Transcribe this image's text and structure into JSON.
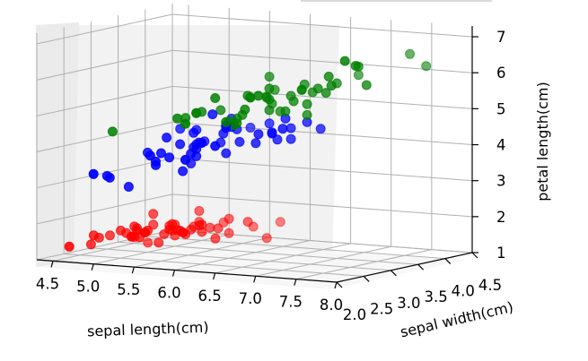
{
  "chart_data": {
    "type": "scatter",
    "projection": "3d",
    "title": "",
    "xlabel": "sepal length(cm)",
    "ylabel": "sepal width(cm)",
    "zlabel": "petal length(cm)",
    "xlim": [
      4.3,
      8.0
    ],
    "ylim": [
      2.0,
      4.5
    ],
    "zlim": [
      1.0,
      7.3
    ],
    "xticks": [
      "4.5",
      "5.0",
      "5.5",
      "6.0",
      "6.5",
      "7.0",
      "7.5",
      "8.0"
    ],
    "yticks": [
      "2.0",
      "2.5",
      "3.0",
      "3.5",
      "4.0",
      "4.5"
    ],
    "zticks": [
      "1",
      "2",
      "3",
      "4",
      "5",
      "6",
      "7"
    ],
    "grid": true,
    "colors": {
      "setosa": "#ff0000",
      "versicolor": "#0000ff",
      "virginica": "#008000"
    },
    "series": [
      {
        "color": "#ff0000",
        "points": [
          [
            5.1,
            3.5,
            1.4
          ],
          [
            4.9,
            3.0,
            1.4
          ],
          [
            4.7,
            3.2,
            1.3
          ],
          [
            4.6,
            3.1,
            1.5
          ],
          [
            5.0,
            3.6,
            1.4
          ],
          [
            5.4,
            3.9,
            1.7
          ],
          [
            4.6,
            3.4,
            1.4
          ],
          [
            5.0,
            3.4,
            1.5
          ],
          [
            4.4,
            2.9,
            1.4
          ],
          [
            4.9,
            3.1,
            1.5
          ],
          [
            5.4,
            3.7,
            1.5
          ],
          [
            4.8,
            3.4,
            1.6
          ],
          [
            4.8,
            3.0,
            1.4
          ],
          [
            4.3,
            3.0,
            1.1
          ],
          [
            5.8,
            4.0,
            1.2
          ],
          [
            5.7,
            4.4,
            1.5
          ],
          [
            5.4,
            3.9,
            1.3
          ],
          [
            5.1,
            3.5,
            1.4
          ],
          [
            5.7,
            3.8,
            1.7
          ],
          [
            5.1,
            3.8,
            1.5
          ],
          [
            5.4,
            3.4,
            1.7
          ],
          [
            5.1,
            3.7,
            1.5
          ],
          [
            4.6,
            3.6,
            1.0
          ],
          [
            5.1,
            3.3,
            1.7
          ],
          [
            4.8,
            3.4,
            1.9
          ],
          [
            5.0,
            3.0,
            1.6
          ],
          [
            5.0,
            3.4,
            1.6
          ],
          [
            5.2,
            3.5,
            1.5
          ],
          [
            5.2,
            3.4,
            1.4
          ],
          [
            4.7,
            3.2,
            1.6
          ],
          [
            4.8,
            3.1,
            1.6
          ],
          [
            5.4,
            3.4,
            1.5
          ],
          [
            5.2,
            4.1,
            1.5
          ],
          [
            5.5,
            4.2,
            1.4
          ],
          [
            4.9,
            3.1,
            1.5
          ],
          [
            5.0,
            3.2,
            1.2
          ],
          [
            5.5,
            3.5,
            1.3
          ],
          [
            4.9,
            3.6,
            1.4
          ],
          [
            4.4,
            3.0,
            1.3
          ],
          [
            5.1,
            3.4,
            1.5
          ],
          [
            5.0,
            3.5,
            1.3
          ],
          [
            4.5,
            2.3,
            1.3
          ],
          [
            4.4,
            3.2,
            1.3
          ],
          [
            5.0,
            3.5,
            1.6
          ],
          [
            5.1,
            3.8,
            1.9
          ],
          [
            4.8,
            3.0,
            1.4
          ],
          [
            5.1,
            3.8,
            1.6
          ],
          [
            4.6,
            3.2,
            1.4
          ],
          [
            5.3,
            3.7,
            1.5
          ],
          [
            5.0,
            3.3,
            1.4
          ]
        ]
      },
      {
        "color": "#0000ff",
        "points": [
          [
            7.0,
            3.2,
            4.7
          ],
          [
            6.4,
            3.2,
            4.5
          ],
          [
            6.9,
            3.1,
            4.9
          ],
          [
            5.5,
            2.3,
            4.0
          ],
          [
            6.5,
            2.8,
            4.6
          ],
          [
            5.7,
            2.8,
            4.5
          ],
          [
            6.3,
            3.3,
            4.7
          ],
          [
            4.9,
            2.4,
            3.3
          ],
          [
            6.6,
            2.9,
            4.6
          ],
          [
            5.2,
            2.7,
            3.9
          ],
          [
            5.0,
            2.0,
            3.5
          ],
          [
            5.9,
            3.0,
            4.2
          ],
          [
            6.0,
            2.2,
            4.0
          ],
          [
            6.1,
            2.9,
            4.7
          ],
          [
            5.6,
            2.9,
            3.6
          ],
          [
            6.7,
            3.1,
            4.4
          ],
          [
            5.6,
            3.0,
            4.5
          ],
          [
            5.8,
            2.7,
            4.1
          ],
          [
            6.2,
            2.2,
            4.5
          ],
          [
            5.6,
            2.5,
            3.9
          ],
          [
            5.9,
            3.2,
            4.8
          ],
          [
            6.1,
            2.8,
            4.0
          ],
          [
            6.3,
            2.5,
            4.9
          ],
          [
            6.1,
            2.8,
            4.7
          ],
          [
            6.4,
            2.9,
            4.3
          ],
          [
            6.6,
            3.0,
            4.4
          ],
          [
            6.8,
            2.8,
            4.8
          ],
          [
            6.7,
            3.0,
            5.0
          ],
          [
            6.0,
            2.9,
            4.5
          ],
          [
            5.7,
            2.6,
            3.5
          ],
          [
            5.5,
            2.4,
            3.8
          ],
          [
            5.5,
            2.4,
            3.7
          ],
          [
            5.8,
            2.7,
            3.9
          ],
          [
            6.0,
            2.7,
            5.1
          ],
          [
            5.4,
            3.0,
            4.5
          ],
          [
            6.0,
            3.4,
            4.5
          ],
          [
            6.7,
            3.1,
            4.7
          ],
          [
            6.3,
            2.3,
            4.4
          ],
          [
            5.6,
            3.0,
            4.1
          ],
          [
            5.5,
            2.5,
            4.0
          ],
          [
            5.5,
            2.6,
            4.4
          ],
          [
            6.1,
            3.0,
            4.6
          ],
          [
            5.8,
            2.6,
            4.0
          ],
          [
            5.0,
            2.3,
            3.3
          ],
          [
            5.6,
            2.7,
            4.2
          ],
          [
            5.7,
            3.0,
            4.2
          ],
          [
            5.7,
            2.9,
            4.2
          ],
          [
            6.2,
            2.9,
            4.3
          ],
          [
            5.1,
            2.5,
            3.0
          ],
          [
            5.7,
            2.8,
            4.1
          ]
        ]
      },
      {
        "color": "#008000",
        "points": [
          [
            6.3,
            3.3,
            6.0
          ],
          [
            5.8,
            2.7,
            5.1
          ],
          [
            7.1,
            3.0,
            5.9
          ],
          [
            6.3,
            2.9,
            5.6
          ],
          [
            6.5,
            3.0,
            5.8
          ],
          [
            7.6,
            3.0,
            6.6
          ],
          [
            4.9,
            2.5,
            4.5
          ],
          [
            7.3,
            2.9,
            6.3
          ],
          [
            6.7,
            2.5,
            5.8
          ],
          [
            7.2,
            3.6,
            6.1
          ],
          [
            6.5,
            3.2,
            5.1
          ],
          [
            6.4,
            2.7,
            5.3
          ],
          [
            6.8,
            3.0,
            5.5
          ],
          [
            5.7,
            2.5,
            5.0
          ],
          [
            5.8,
            2.8,
            5.1
          ],
          [
            6.4,
            3.2,
            5.3
          ],
          [
            6.5,
            3.0,
            5.5
          ],
          [
            7.7,
            3.8,
            6.7
          ],
          [
            7.7,
            2.6,
            6.9
          ],
          [
            6.0,
            2.2,
            5.0
          ],
          [
            6.9,
            3.2,
            5.7
          ],
          [
            5.6,
            2.8,
            4.9
          ],
          [
            7.7,
            2.8,
            6.7
          ],
          [
            6.3,
            2.7,
            4.9
          ],
          [
            6.7,
            3.3,
            5.7
          ],
          [
            7.2,
            3.2,
            6.0
          ],
          [
            6.2,
            2.8,
            4.8
          ],
          [
            6.1,
            3.0,
            4.9
          ],
          [
            6.4,
            2.8,
            5.6
          ],
          [
            7.2,
            3.0,
            5.8
          ],
          [
            7.4,
            2.8,
            6.1
          ],
          [
            7.9,
            3.8,
            6.4
          ],
          [
            6.4,
            2.8,
            5.6
          ],
          [
            6.3,
            2.8,
            5.1
          ],
          [
            6.1,
            2.6,
            5.6
          ],
          [
            7.7,
            3.0,
            6.1
          ],
          [
            6.3,
            3.4,
            5.6
          ],
          [
            6.4,
            3.1,
            5.5
          ],
          [
            6.0,
            3.0,
            4.8
          ],
          [
            6.9,
            3.1,
            5.4
          ],
          [
            6.7,
            3.1,
            5.6
          ],
          [
            6.9,
            3.1,
            5.1
          ],
          [
            5.8,
            2.7,
            5.1
          ],
          [
            6.8,
            3.2,
            5.9
          ],
          [
            6.7,
            3.3,
            5.7
          ],
          [
            6.7,
            3.0,
            5.2
          ],
          [
            6.3,
            2.5,
            5.0
          ],
          [
            6.5,
            3.0,
            5.2
          ],
          [
            6.2,
            3.4,
            5.4
          ],
          [
            5.9,
            3.0,
            5.1
          ]
        ]
      }
    ]
  }
}
